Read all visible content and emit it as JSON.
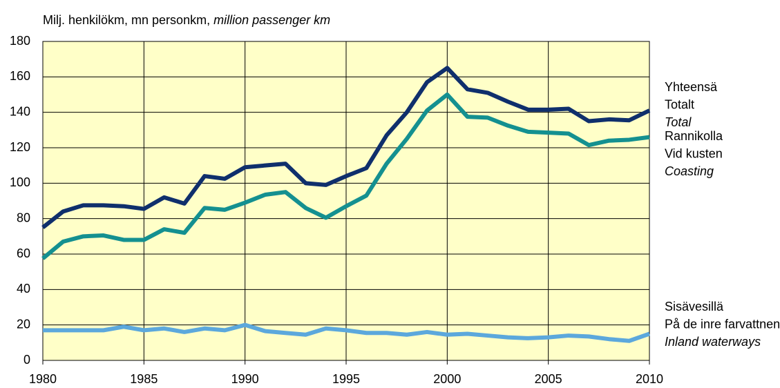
{
  "chart_data": {
    "type": "line",
    "title": [
      "Milj. henkilökm, mn personkm,",
      "million passenger km"
    ],
    "x": [
      1980,
      1981,
      1982,
      1983,
      1984,
      1985,
      1986,
      1987,
      1988,
      1989,
      1990,
      1991,
      1992,
      1993,
      1994,
      1995,
      1996,
      1997,
      1998,
      1999,
      2000,
      2001,
      2002,
      2003,
      2004,
      2005,
      2006,
      2007,
      2008,
      2009,
      2010
    ],
    "xlim": [
      1980,
      2010
    ],
    "xticks": [
      1980,
      1985,
      1990,
      1995,
      2000,
      2005,
      2010
    ],
    "ylim": [
      0,
      180
    ],
    "yticks": [
      0,
      20,
      40,
      60,
      80,
      100,
      120,
      140,
      160,
      180
    ],
    "grid": true,
    "background": "#ffffc8",
    "series": [
      {
        "name": [
          "Yhteensä",
          "Totalt",
          "Total"
        ],
        "color": "#0f2f6c",
        "values": [
          75,
          84,
          87.5,
          87.5,
          87,
          85.5,
          92,
          88.5,
          104,
          102.5,
          109,
          110,
          111,
          100,
          99,
          104,
          108.5,
          127,
          140,
          157,
          165,
          153,
          151,
          146,
          141.5,
          141.5,
          142,
          135,
          136,
          135.5,
          141
        ]
      },
      {
        "name": [
          "Rannikolla",
          "Vid kusten",
          "Coasting"
        ],
        "color": "#149090",
        "values": [
          57.5,
          67,
          70,
          70.5,
          68,
          68,
          74,
          72,
          86,
          85,
          89,
          93.5,
          95,
          86,
          80.5,
          87,
          93,
          111,
          125,
          141,
          150,
          137.5,
          137,
          132.5,
          129,
          128.5,
          128,
          121.5,
          124,
          124.5,
          126
        ]
      },
      {
        "name": [
          "Sisävesillä",
          "På de inre farvattnen",
          "Inland waterways"
        ],
        "color": "#5ca8dc",
        "values": [
          17,
          17,
          17,
          17,
          19,
          17,
          18,
          16,
          18,
          17,
          20,
          16.5,
          15.5,
          14.5,
          18,
          17,
          15.5,
          15.5,
          14.5,
          16,
          14.5,
          15,
          14,
          13,
          12.5,
          13,
          14,
          13.5,
          12,
          11,
          15
        ]
      }
    ]
  }
}
